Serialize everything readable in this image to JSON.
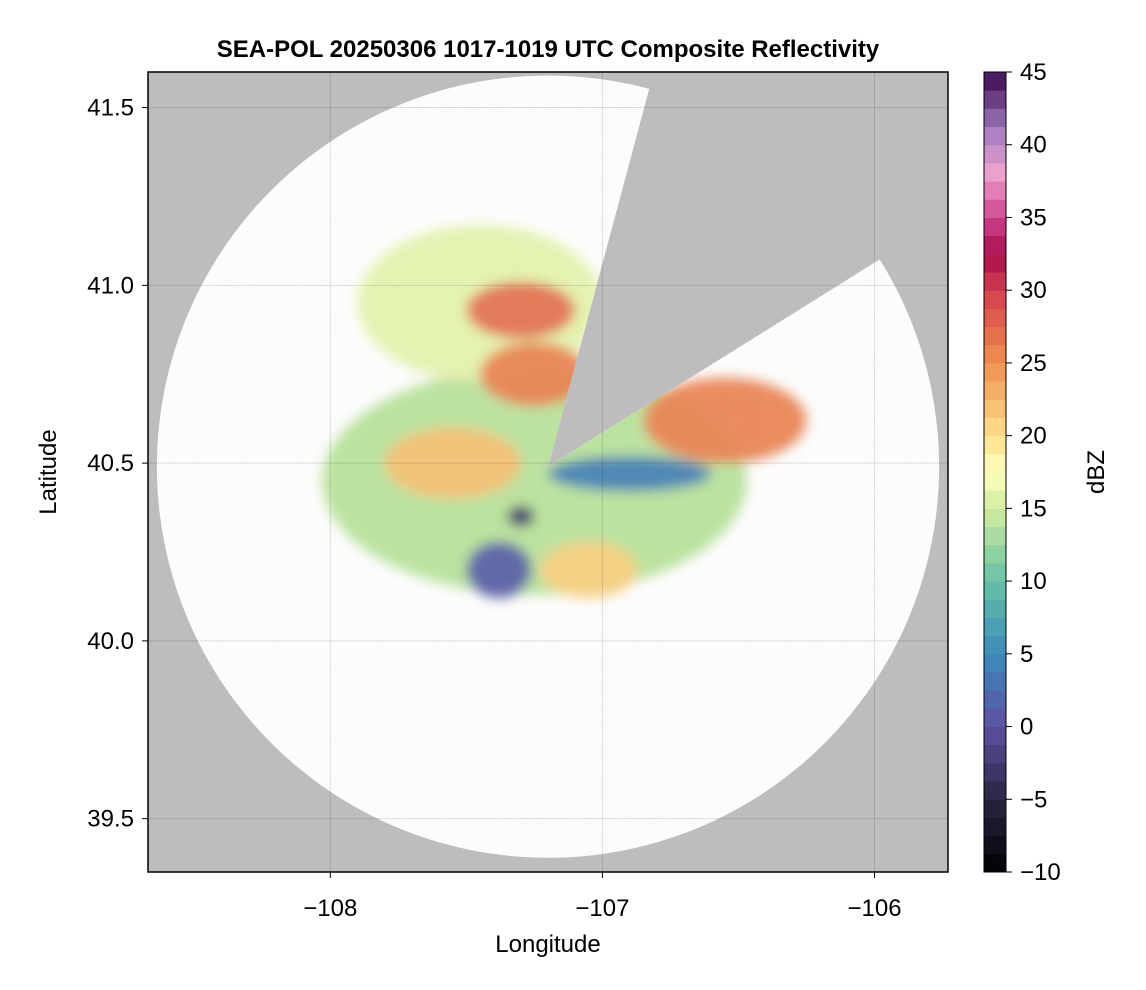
{
  "chart_data": {
    "type": "heatmap",
    "title": "SEA-POL 20250306 1017-1019 UTC Composite Reflectivity",
    "xlabel": "Longitude",
    "ylabel": "Latitude",
    "xlim": [
      -108.67,
      -105.73
    ],
    "ylim": [
      39.35,
      41.6
    ],
    "x_ticks": [
      -108,
      -107,
      -106
    ],
    "x_tick_labels": [
      "−108",
      "−107",
      "−106"
    ],
    "y_ticks": [
      39.5,
      40.0,
      40.5,
      41.0,
      41.5
    ],
    "y_tick_labels": [
      "39.5",
      "40.0",
      "40.5",
      "41.0",
      "41.5"
    ],
    "grid": true,
    "radar": {
      "center_lon": -107.2,
      "center_lat": 40.49,
      "range_deg_lat": 1.1,
      "background_outside_range": "#bdbdbd",
      "blocked_sectors_bearing_deg": [
        [
          15,
          58
        ]
      ]
    },
    "colorbar": {
      "label": "dBZ",
      "min": -10,
      "max": 45,
      "step": 1.25,
      "ticks": [
        -10,
        -5,
        0,
        5,
        10,
        15,
        20,
        25,
        30,
        35,
        40,
        45
      ],
      "tick_labels": [
        "−10",
        "−5",
        "0",
        "5",
        "10",
        "15",
        "20",
        "25",
        "30",
        "35",
        "40",
        "45"
      ],
      "colormap": "Spectral (reversed) with dark extension below 0 dBZ",
      "color_stops": [
        [
          -10,
          "#000004"
        ],
        [
          -5,
          "#2b2440"
        ],
        [
          0,
          "#5e4fa2"
        ],
        [
          5,
          "#3d8bbb"
        ],
        [
          10,
          "#66c2a5"
        ],
        [
          15,
          "#d2ec9e"
        ],
        [
          17.5,
          "#ffffbf"
        ],
        [
          20,
          "#fee08b"
        ],
        [
          25,
          "#f0904f"
        ],
        [
          30,
          "#d53e4f"
        ],
        [
          32.5,
          "#a80d4e"
        ],
        [
          35,
          "#d0448f"
        ],
        [
          38,
          "#eea3cd"
        ],
        [
          41,
          "#a47cc0"
        ],
        [
          45,
          "#3a0a4f"
        ]
      ]
    },
    "echo_regions": [
      {
        "desc": "main echo mass",
        "lon": -107.25,
        "lat": 40.45,
        "rx": 0.78,
        "ry": 0.32,
        "dbz": 14
      },
      {
        "desc": "northern arm",
        "lon": -107.45,
        "lat": 40.95,
        "rx": 0.45,
        "ry": 0.22,
        "dbz": 16
      },
      {
        "desc": "north core",
        "lon": -107.3,
        "lat": 40.93,
        "rx": 0.2,
        "ry": 0.08,
        "dbz": 27
      },
      {
        "desc": "north-central core",
        "lon": -107.25,
        "lat": 40.75,
        "rx": 0.2,
        "ry": 0.09,
        "dbz": 26
      },
      {
        "desc": "west-central band",
        "lon": -107.55,
        "lat": 40.5,
        "rx": 0.25,
        "ry": 0.1,
        "dbz": 22
      },
      {
        "desc": "east core",
        "lon": -106.55,
        "lat": 40.62,
        "rx": 0.3,
        "ry": 0.12,
        "dbz": 26
      },
      {
        "desc": "south-central band",
        "lon": -107.05,
        "lat": 40.2,
        "rx": 0.18,
        "ry": 0.08,
        "dbz": 21
      },
      {
        "desc": "low reflectivity channel",
        "lon": -106.9,
        "lat": 40.47,
        "rx": 0.3,
        "ry": 0.05,
        "dbz": 4
      },
      {
        "desc": "low reflectivity patch",
        "lon": -107.38,
        "lat": 40.2,
        "rx": 0.12,
        "ry": 0.08,
        "dbz": 1
      },
      {
        "desc": "minimum patch",
        "lon": -107.3,
        "lat": 40.35,
        "rx": 0.05,
        "ry": 0.03,
        "dbz": -3
      }
    ]
  }
}
